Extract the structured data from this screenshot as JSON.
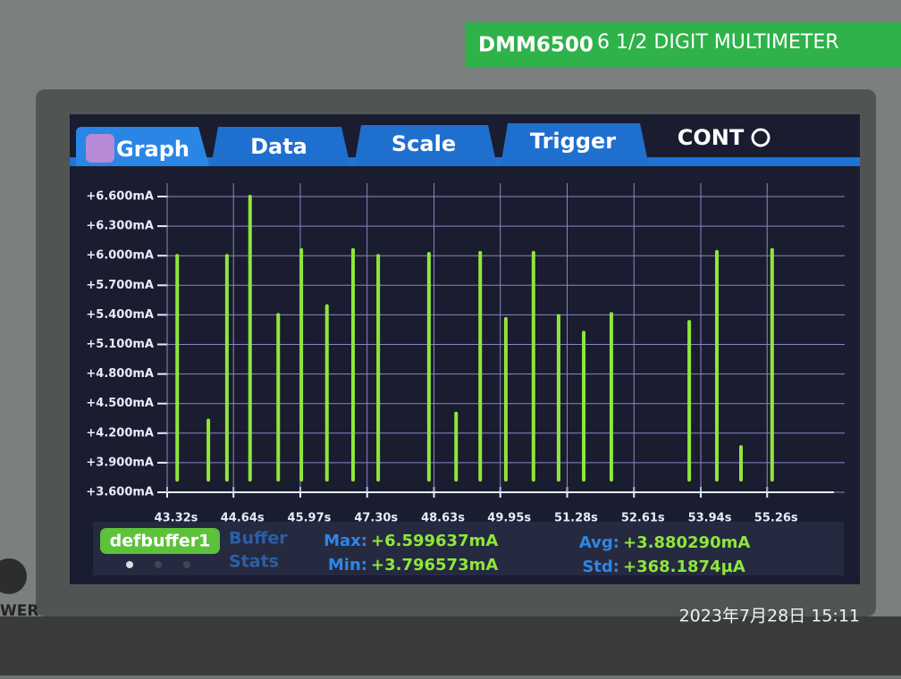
{
  "header": {
    "model": "DMM6500",
    "description": "6 1/2 DIGIT MULTIMETER"
  },
  "power_label": "WER",
  "tabs": [
    "Graph",
    "Data",
    "Scale",
    "Trigger",
    "CONT"
  ],
  "chart_data": {
    "type": "stem",
    "color": "#8fe63c",
    "grid": true,
    "x": [
      43.52,
      44.14,
      44.51,
      44.97,
      45.53,
      45.99,
      46.5,
      47.02,
      47.52,
      48.53,
      49.07,
      49.55,
      50.06,
      50.61,
      51.11,
      51.61,
      52.16,
      53.71,
      54.26,
      54.74,
      55.36
    ],
    "values": [
      6.0,
      4.33,
      6.0,
      6.6,
      5.4,
      6.06,
      5.49,
      6.06,
      6.0,
      6.02,
      4.4,
      6.03,
      5.36,
      6.03,
      5.39,
      5.22,
      5.41,
      5.33,
      6.04,
      4.06,
      6.06
    ],
    "xlim": [
      43.32,
      56.59
    ],
    "xticks": [
      {
        "value": 43.32,
        "label": "43.32s"
      },
      {
        "value": 44.64,
        "label": "44.64s"
      },
      {
        "value": 45.97,
        "label": "45.97s"
      },
      {
        "value": 47.3,
        "label": "47.30s"
      },
      {
        "value": 48.63,
        "label": "48.63s"
      },
      {
        "value": 49.95,
        "label": "49.95s"
      },
      {
        "value": 51.28,
        "label": "51.28s"
      },
      {
        "value": 52.61,
        "label": "52.61s"
      },
      {
        "value": 53.94,
        "label": "53.94s"
      },
      {
        "value": 55.26,
        "label": "55.26s"
      }
    ],
    "ylim": [
      3.6,
      6.6
    ],
    "yticks": [
      {
        "value": 3.6,
        "label": "+3.600mA"
      },
      {
        "value": 3.9,
        "label": "+3.900mA"
      },
      {
        "value": 4.2,
        "label": "+4.200mA"
      },
      {
        "value": 4.5,
        "label": "+4.500mA"
      },
      {
        "value": 4.8,
        "label": "+4.800mA"
      },
      {
        "value": 5.1,
        "label": "+5.100mA"
      },
      {
        "value": 5.4,
        "label": "+5.400mA"
      },
      {
        "value": 5.7,
        "label": "+5.700mA"
      },
      {
        "value": 6.0,
        "label": "+6.000mA"
      },
      {
        "value": 6.3,
        "label": "+6.300mA"
      },
      {
        "value": 6.6,
        "label": "+6.600mA"
      }
    ]
  },
  "buffer": {
    "name": "defbuffer1",
    "title_line1": "Buffer",
    "title_line2": "Stats"
  },
  "stats": [
    {
      "label": "Max:",
      "value": "+6.599637mA"
    },
    {
      "label": "Min:",
      "value": "+3.796573mA"
    },
    {
      "label": "Avg:",
      "value": "+3.880290mA"
    },
    {
      "label": "Std:",
      "value": "+368.1874µA"
    }
  ],
  "timestamp": "2023年7月28日 15:11"
}
